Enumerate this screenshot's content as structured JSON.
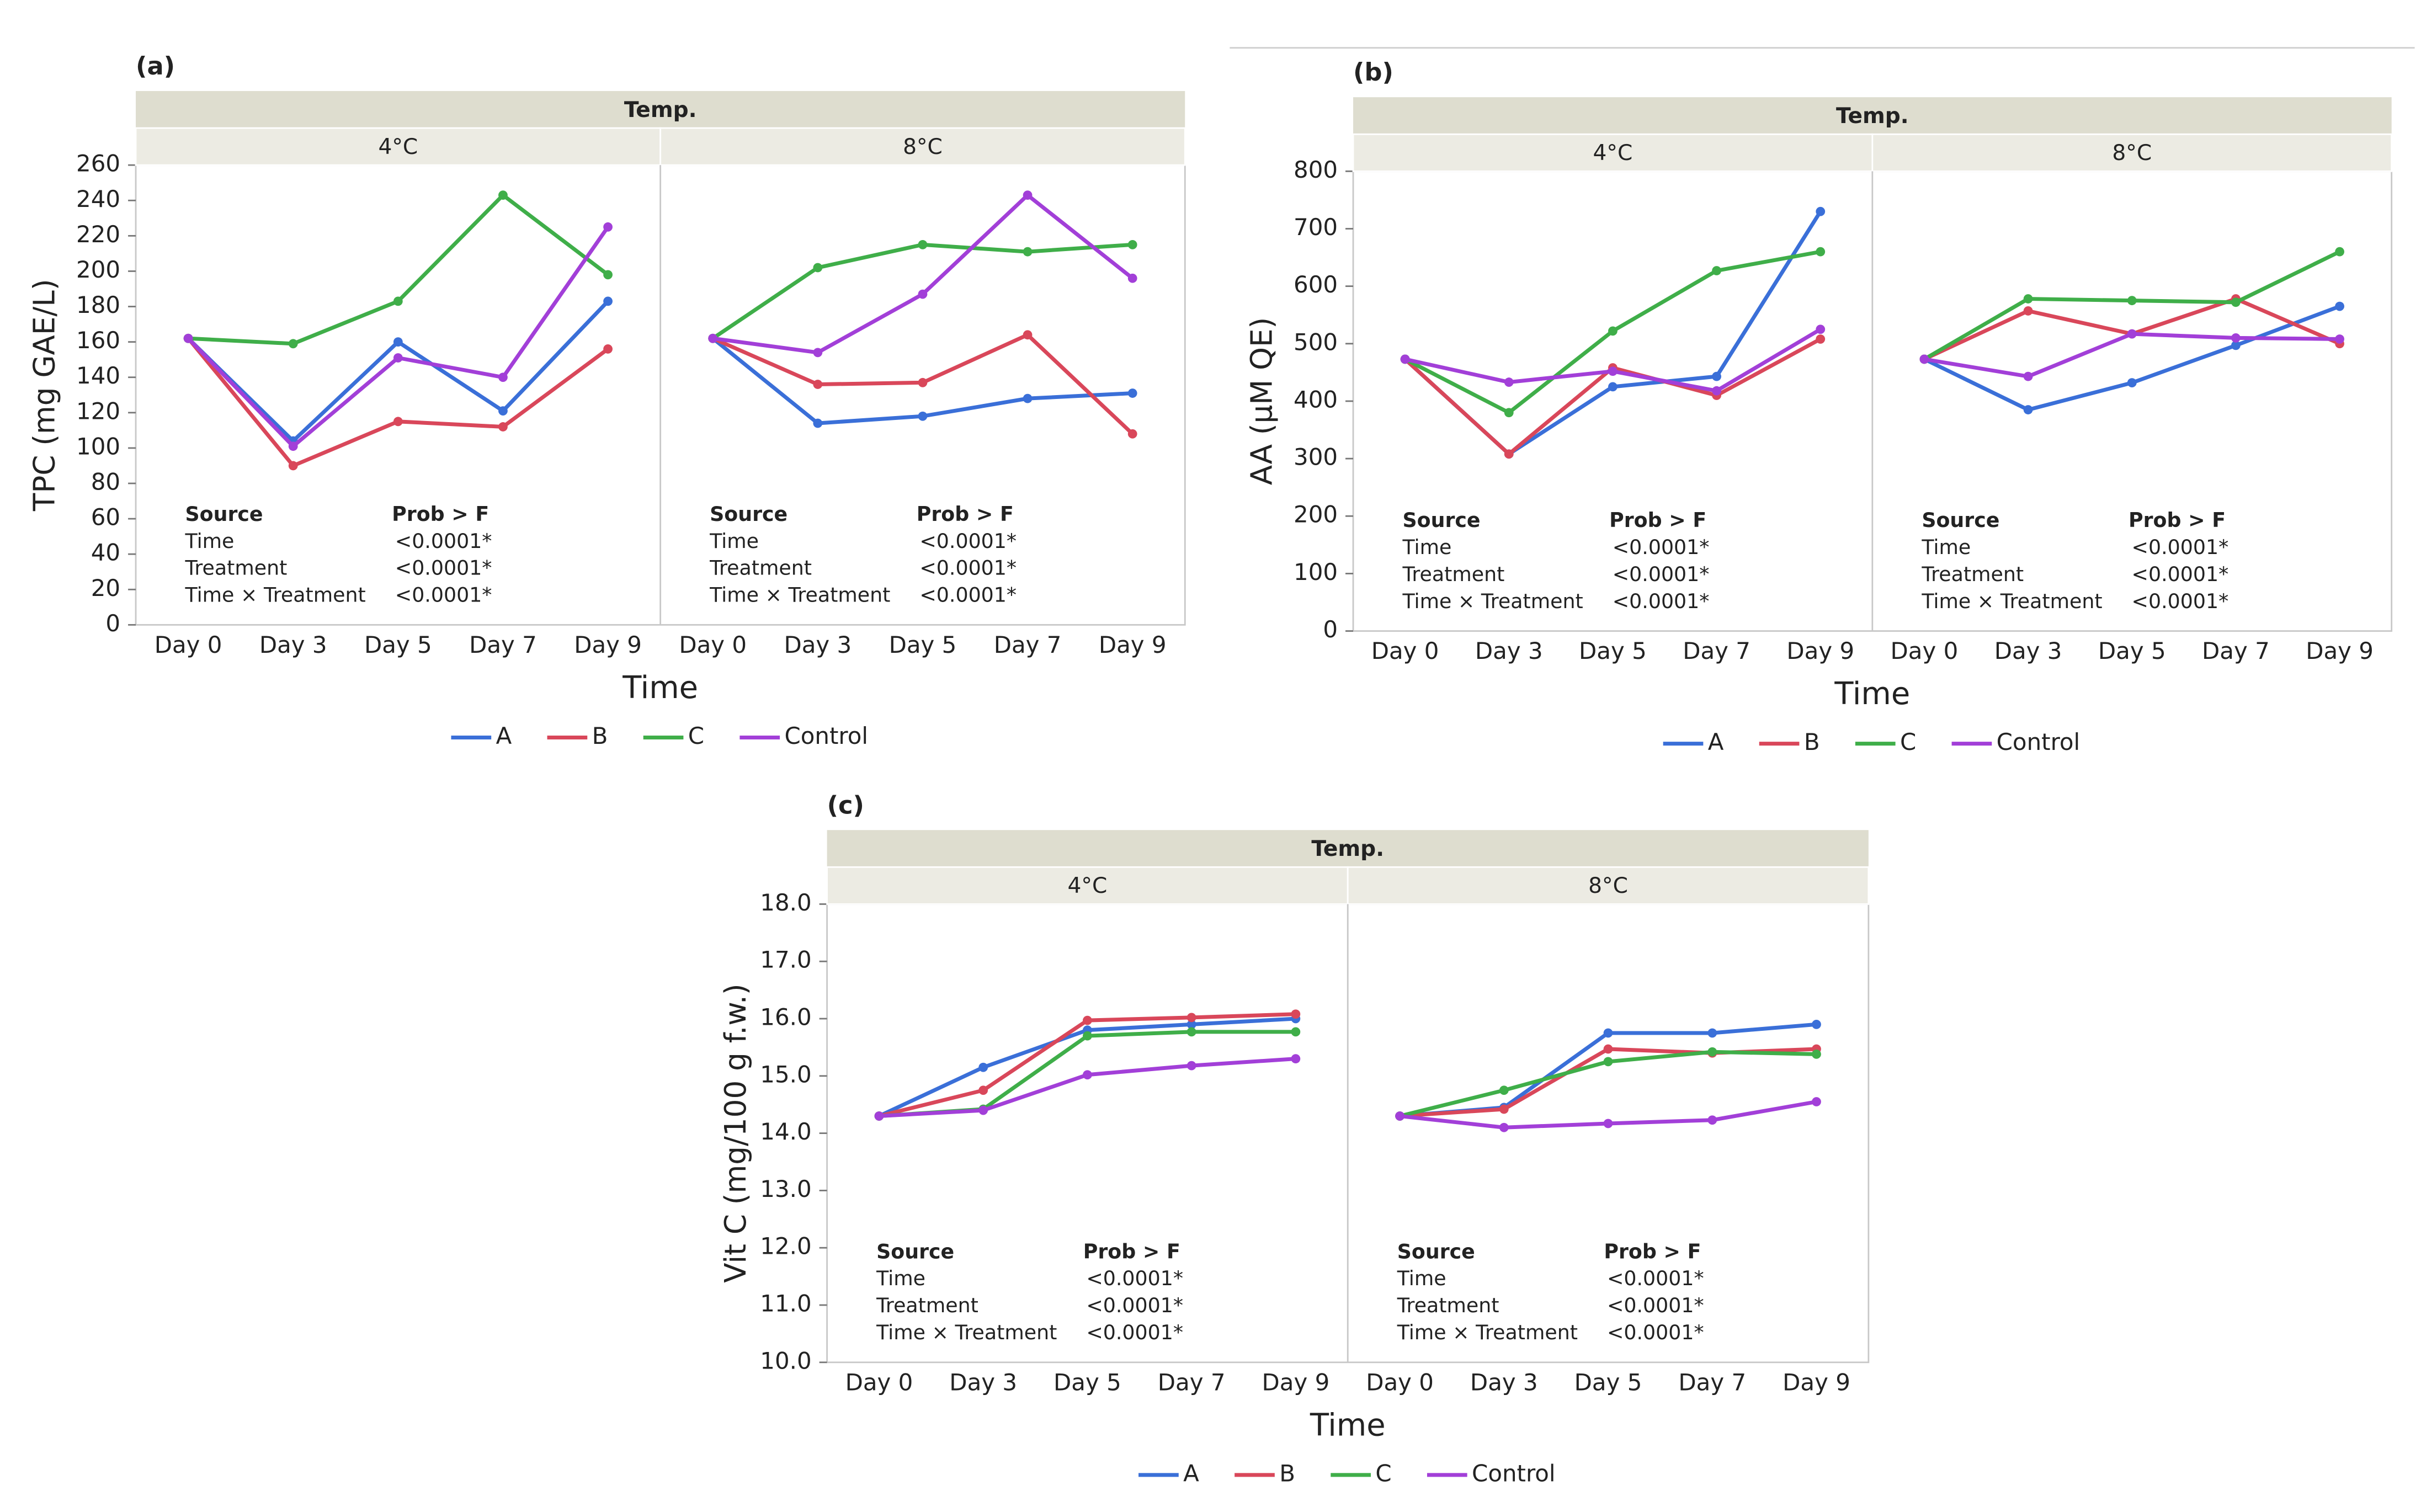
{
  "chart_data": [
    {
      "type": "line",
      "label": "(a)",
      "facet_title": "Temp.",
      "ylabel": "TPC (mg GAE/L)",
      "xlabel": "Time",
      "categories": [
        "Day 0",
        "Day 3",
        "Day 5",
        "Day 7",
        "Day 9"
      ],
      "ylim": [
        0,
        260
      ],
      "yticks": [
        0,
        20,
        40,
        60,
        80,
        100,
        120,
        140,
        160,
        180,
        200,
        220,
        240,
        260
      ],
      "series": [
        {
          "name": "A",
          "color": "#3a6fd8"
        },
        {
          "name": "B",
          "color": "#d9475a"
        },
        {
          "name": "C",
          "color": "#3fae49"
        },
        {
          "name": "Control",
          "color": "#a23fd8"
        }
      ],
      "panels": [
        {
          "title": "4°C",
          "values": [
            [
              162,
              104,
              160,
              121,
              183
            ],
            [
              162,
              90,
              115,
              112,
              156
            ],
            [
              162,
              159,
              183,
              243,
              198
            ],
            [
              162,
              101,
              151,
              140,
              225
            ]
          ],
          "stats": {
            "header": [
              "Source",
              "Prob > F"
            ],
            "rows": [
              [
                "Time",
                "<0.0001*"
              ],
              [
                "Treatment",
                "<0.0001*"
              ],
              [
                "Time × Treatment",
                "<0.0001*"
              ]
            ]
          }
        },
        {
          "title": "8°C",
          "values": [
            [
              162,
              114,
              118,
              128,
              131
            ],
            [
              162,
              136,
              137,
              164,
              108
            ],
            [
              162,
              202,
              215,
              211,
              215
            ],
            [
              162,
              154,
              187,
              243,
              196
            ]
          ],
          "stats": {
            "header": [
              "Source",
              "Prob > F"
            ],
            "rows": [
              [
                "Time",
                "<0.0001*"
              ],
              [
                "Treatment",
                "<0.0001*"
              ],
              [
                "Time × Treatment",
                "<0.0001*"
              ]
            ]
          }
        }
      ]
    },
    {
      "type": "line",
      "label": "(b)",
      "facet_title": "Temp.",
      "ylabel": "AA (µM QE)",
      "xlabel": "Time",
      "categories": [
        "Day 0",
        "Day 3",
        "Day 5",
        "Day 7",
        "Day 9"
      ],
      "ylim": [
        0,
        800
      ],
      "yticks": [
        0,
        100,
        200,
        300,
        400,
        500,
        600,
        700,
        800
      ],
      "series": [
        {
          "name": "A",
          "color": "#3a6fd8"
        },
        {
          "name": "B",
          "color": "#d9475a"
        },
        {
          "name": "C",
          "color": "#3fae49"
        },
        {
          "name": "Control",
          "color": "#a23fd8"
        }
      ],
      "panels": [
        {
          "title": "4°C",
          "values": [
            [
              473,
              308,
              425,
              443,
              730
            ],
            [
              473,
              308,
              458,
              410,
              508
            ],
            [
              473,
              380,
              522,
              627,
              660
            ],
            [
              473,
              433,
              452,
              418,
              525
            ]
          ],
          "stats": {
            "header": [
              "Source",
              "Prob > F"
            ],
            "rows": [
              [
                "Time",
                "<0.0001*"
              ],
              [
                "Treatment",
                "<0.0001*"
              ],
              [
                "Time × Treatment",
                "<0.0001*"
              ]
            ]
          }
        },
        {
          "title": "8°C",
          "values": [
            [
              473,
              385,
              432,
              497,
              565
            ],
            [
              473,
              557,
              517,
              578,
              500
            ],
            [
              473,
              578,
              575,
              572,
              660
            ],
            [
              473,
              443,
              517,
              510,
              508
            ]
          ],
          "stats": {
            "header": [
              "Source",
              "Prob > F"
            ],
            "rows": [
              [
                "Time",
                "<0.0001*"
              ],
              [
                "Treatment",
                "<0.0001*"
              ],
              [
                "Time × Treatment",
                "<0.0001*"
              ]
            ]
          }
        }
      ]
    },
    {
      "type": "line",
      "label": "(c)",
      "facet_title": "Temp.",
      "ylabel": "Vit C (mg/100 g f.w.)",
      "xlabel": "Time",
      "categories": [
        "Day 0",
        "Day 3",
        "Day 5",
        "Day 7",
        "Day 9"
      ],
      "ylim": [
        10,
        18
      ],
      "yticks": [
        {
          "value": 10,
          "label": "10.0"
        },
        {
          "value": 11,
          "label": "11.0"
        },
        {
          "value": 12,
          "label": "12.0"
        },
        {
          "value": 13,
          "label": "13.0"
        },
        {
          "value": 14,
          "label": "14.0"
        },
        {
          "value": 15,
          "label": "15.0"
        },
        {
          "value": 16,
          "label": "16.0"
        },
        {
          "value": 17,
          "label": "17.0"
        },
        {
          "value": 18,
          "label": "18.0"
        }
      ],
      "series": [
        {
          "name": "A",
          "color": "#3a6fd8"
        },
        {
          "name": "B",
          "color": "#d9475a"
        },
        {
          "name": "C",
          "color": "#3fae49"
        },
        {
          "name": "Control",
          "color": "#a23fd8"
        }
      ],
      "panels": [
        {
          "title": "4°C",
          "values": [
            [
              14.3,
              15.15,
              15.8,
              15.9,
              16.0
            ],
            [
              14.3,
              14.75,
              15.97,
              16.02,
              16.08
            ],
            [
              14.3,
              14.42,
              15.7,
              15.77,
              15.77
            ],
            [
              14.3,
              14.4,
              15.02,
              15.18,
              15.3
            ]
          ],
          "stats": {
            "header": [
              "Source",
              "Prob > F"
            ],
            "rows": [
              [
                "Time",
                "<0.0001*"
              ],
              [
                "Treatment",
                "<0.0001*"
              ],
              [
                "Time × Treatment",
                "<0.0001*"
              ]
            ]
          }
        },
        {
          "title": "8°C",
          "values": [
            [
              14.3,
              14.45,
              15.75,
              15.75,
              15.9
            ],
            [
              14.3,
              14.42,
              15.47,
              15.4,
              15.47
            ],
            [
              14.3,
              14.75,
              15.25,
              15.42,
              15.38
            ],
            [
              14.3,
              14.1,
              14.17,
              14.23,
              14.55
            ]
          ],
          "stats": {
            "header": [
              "Source",
              "Prob > F"
            ],
            "rows": [
              [
                "Time",
                "<0.0001*"
              ],
              [
                "Treatment",
                "<0.0001*"
              ],
              [
                "Time × Treatment",
                "<0.0001*"
              ]
            ]
          }
        }
      ]
    }
  ]
}
